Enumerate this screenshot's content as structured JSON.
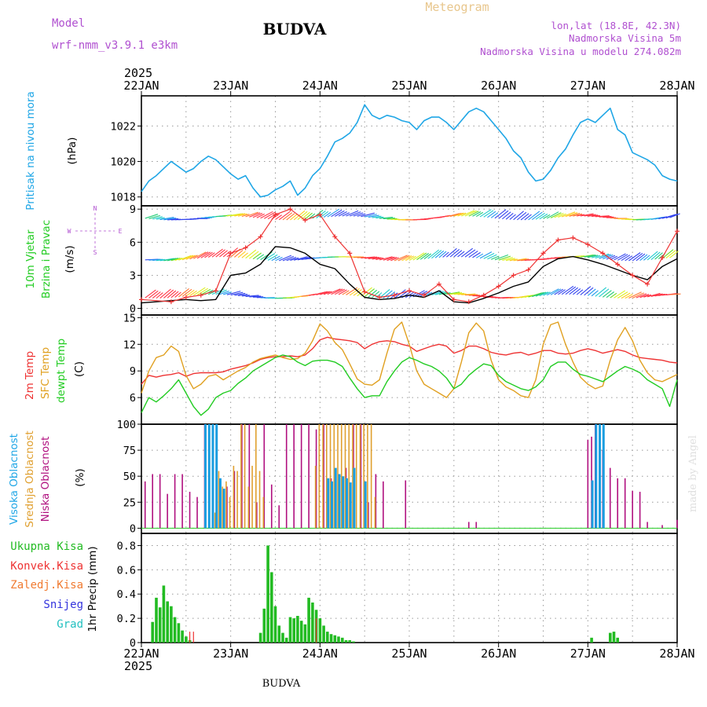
{
  "header": {
    "model_label": "Model",
    "model_name": "wrf-nmm_v3.9.1 e3km",
    "station": "BUDVA",
    "meteogram": "Meteogram",
    "lonlat": "lon,lat (18.8E, 42.3N)",
    "elevation": "Nadmorska Visina 5m",
    "model_elevation": "Nadmorska Visina u modelu 274.082m",
    "year": "2025",
    "footer_station": "BUDVA",
    "watermark": "made by Angel"
  },
  "colors": {
    "pressure": "#1fa6e6",
    "wind_speed": "#000000",
    "gust": "#ee3333",
    "temp2m": "#ee3333",
    "sfc_temp": "#e0a020",
    "dewpt": "#22cc22",
    "high_cloud": "#1a9de0",
    "mid_cloud": "#e0a030",
    "low_cloud": "#b0107f",
    "total_precip": "#22bb22",
    "conv_precip": "#ee3333",
    "frozen_precip": "#f07a30",
    "snow": "#3333dd",
    "hail": "#22c0c0",
    "purple_label": "#a040c0"
  },
  "chart_data": [
    {
      "type": "line",
      "id": "pressure",
      "ylabel": "Pritisak na nivou mora",
      "unit": "(hPa)",
      "ylim": [
        1017.5,
        1023.7
      ],
      "yticks": [
        1018,
        1020,
        1022
      ],
      "x": [
        0,
        2,
        4,
        6,
        8,
        10,
        12,
        14,
        16,
        18,
        20,
        22,
        24,
        26,
        28,
        30,
        32,
        34,
        36,
        38,
        40,
        42,
        44,
        46,
        48,
        50,
        52,
        54,
        56,
        58,
        60,
        62,
        64,
        66,
        68,
        70,
        72,
        74,
        76,
        78,
        80,
        82,
        84,
        86,
        88,
        90,
        92,
        94,
        96,
        98,
        100,
        102,
        104,
        106,
        108,
        110,
        112,
        114,
        116,
        118,
        120,
        122,
        124,
        126,
        128,
        130,
        132,
        134,
        136,
        138,
        140,
        142,
        144
      ],
      "values": [
        1018.3,
        1018.9,
        1019.2,
        1019.6,
        1020.0,
        1019.7,
        1019.4,
        1019.6,
        1020.0,
        1020.3,
        1020.1,
        1019.7,
        1019.3,
        1019.0,
        1019.2,
        1018.5,
        1018.0,
        1018.1,
        1018.4,
        1018.6,
        1018.9,
        1018.1,
        1018.5,
        1019.2,
        1019.6,
        1020.3,
        1021.1,
        1021.3,
        1021.6,
        1022.2,
        1023.2,
        1022.6,
        1022.4,
        1022.6,
        1022.5,
        1022.3,
        1022.2,
        1021.8,
        1022.3,
        1022.5,
        1022.5,
        1022.2,
        1021.8,
        1022.3,
        1022.8,
        1023.0,
        1022.8,
        1022.3,
        1021.8,
        1021.3,
        1020.6,
        1020.2,
        1019.4,
        1018.9,
        1019.0,
        1019.5,
        1020.2,
        1020.7,
        1021.5,
        1022.2,
        1022.4,
        1022.2,
        1022.6,
        1023.0,
        1021.8,
        1021.5,
        1020.5,
        1020.3,
        1020.1,
        1019.8,
        1019.2,
        1019.0,
        1018.9
      ]
    },
    {
      "type": "line",
      "id": "wind",
      "ylabel1": "10m Vjetar",
      "ylabel2": "Brzina i Pravac",
      "unit": "(m/s)",
      "compass": [
        "N",
        "W",
        "E",
        "S"
      ],
      "ylim": [
        -0.6,
        9.3
      ],
      "yticks": [
        0,
        3,
        6,
        9
      ],
      "series": [
        {
          "name": "speed",
          "x": [
            0,
            12,
            16,
            20,
            24,
            28,
            32,
            36,
            40,
            44,
            48,
            52,
            56,
            60,
            64,
            68,
            72,
            76,
            80,
            84,
            88,
            92,
            96,
            100,
            104,
            108,
            112,
            116,
            120,
            124,
            128,
            132,
            136,
            140,
            144
          ],
          "values": [
            0.5,
            0.8,
            0.7,
            0.8,
            3.0,
            3.2,
            4.0,
            5.6,
            5.5,
            5.0,
            4.0,
            3.6,
            2.2,
            1.0,
            0.8,
            0.9,
            1.2,
            1.0,
            1.6,
            0.6,
            0.5,
            0.9,
            1.4,
            2.0,
            2.4,
            3.8,
            4.5,
            4.7,
            4.4,
            4.0,
            3.5,
            3.0,
            2.6,
            3.8,
            4.5
          ]
        },
        {
          "name": "gust",
          "x": [
            0,
            8,
            12,
            16,
            20,
            24,
            28,
            32,
            36,
            40,
            44,
            48,
            52,
            56,
            60,
            64,
            68,
            72,
            76,
            80,
            84,
            88,
            92,
            96,
            100,
            104,
            108,
            112,
            116,
            120,
            124,
            128,
            132,
            136,
            140,
            144
          ],
          "values": [
            0.8,
            0.6,
            1.0,
            1.2,
            1.6,
            5.0,
            5.5,
            6.5,
            8.5,
            9.0,
            8.0,
            8.5,
            6.5,
            5.0,
            1.5,
            1.0,
            1.2,
            1.6,
            1.2,
            2.2,
            0.8,
            0.6,
            1.2,
            2.0,
            3.0,
            3.5,
            5.0,
            6.2,
            6.4,
            5.8,
            5.0,
            4.0,
            3.0,
            2.2,
            4.6,
            7.0
          ]
        }
      ]
    },
    {
      "type": "line",
      "id": "temperature",
      "ylabel1": "2m Temp",
      "ylabel2": "SFC Temp",
      "ylabel3": "dewpt Temp",
      "unit": "(C)",
      "ylim": [
        3,
        15.3
      ],
      "yticks": [
        6,
        9,
        12,
        15
      ],
      "x": [
        0,
        2,
        4,
        6,
        8,
        10,
        12,
        14,
        16,
        18,
        20,
        22,
        24,
        26,
        28,
        30,
        32,
        34,
        36,
        38,
        40,
        42,
        44,
        46,
        48,
        50,
        52,
        54,
        56,
        58,
        60,
        62,
        64,
        66,
        68,
        70,
        72,
        74,
        76,
        78,
        80,
        82,
        84,
        86,
        88,
        90,
        92,
        94,
        96,
        98,
        100,
        102,
        104,
        106,
        108,
        110,
        112,
        114,
        116,
        118,
        120,
        122,
        124,
        126,
        128,
        130,
        132,
        134,
        136,
        138,
        140,
        142,
        144
      ],
      "series": [
        {
          "name": "2m Temp",
          "values": [
            7.5,
            8.5,
            8.3,
            8.5,
            8.6,
            8.8,
            8.4,
            8.7,
            8.8,
            8.8,
            8.8,
            8.9,
            9.2,
            9.4,
            9.6,
            9.9,
            10.3,
            10.5,
            10.6,
            10.6,
            10.7,
            10.6,
            10.8,
            11.5,
            12.5,
            12.8,
            12.6,
            12.5,
            12.4,
            12.2,
            11.5,
            12.0,
            12.3,
            12.4,
            12.3,
            12.0,
            11.8,
            11.2,
            11.5,
            11.8,
            12.0,
            11.8,
            11.0,
            11.3,
            11.8,
            11.8,
            11.5,
            11.1,
            10.9,
            10.8,
            11.0,
            11.1,
            10.8,
            11.0,
            11.3,
            11.3,
            11.0,
            10.9,
            11.0,
            11.3,
            11.5,
            11.3,
            11.0,
            11.2,
            11.4,
            11.2,
            10.8,
            10.5,
            10.4,
            10.3,
            10.2,
            10.0,
            9.9
          ]
        },
        {
          "name": "SFC Temp",
          "values": [
            6.5,
            9.0,
            10.5,
            10.8,
            11.8,
            11.2,
            8.5,
            7.0,
            7.5,
            8.4,
            8.6,
            8.0,
            8.5,
            9.0,
            9.4,
            10.0,
            10.4,
            10.6,
            10.8,
            10.5,
            10.3,
            10.4,
            11.0,
            12.4,
            14.3,
            13.5,
            12.2,
            11.4,
            9.8,
            8.1,
            7.5,
            7.4,
            8.0,
            11.0,
            13.7,
            14.5,
            12.0,
            9.0,
            7.5,
            7.0,
            6.5,
            6.0,
            7.0,
            10.0,
            13.3,
            14.4,
            13.5,
            10.2,
            8.0,
            7.2,
            6.8,
            6.2,
            6.0,
            8.0,
            12.0,
            14.2,
            14.5,
            12.0,
            10.0,
            8.3,
            7.5,
            7.0,
            7.3,
            10.2,
            12.5,
            13.9,
            12.4,
            10.2,
            8.8,
            8.0,
            7.8,
            8.2,
            8.6
          ]
        },
        {
          "name": "dewpt Temp",
          "values": [
            4.3,
            6.0,
            5.5,
            6.2,
            7.0,
            8.0,
            6.5,
            5.0,
            4.0,
            4.7,
            6.0,
            6.5,
            6.8,
            7.6,
            8.2,
            9.0,
            9.5,
            10.0,
            10.5,
            10.8,
            10.6,
            10.0,
            9.6,
            10.1,
            10.2,
            10.2,
            10.0,
            9.5,
            8.2,
            7.0,
            6.0,
            6.2,
            6.2,
            7.8,
            9.0,
            10.0,
            10.5,
            10.2,
            9.8,
            9.5,
            9.0,
            8.2,
            7.0,
            7.5,
            8.5,
            9.2,
            9.8,
            9.6,
            8.5,
            7.8,
            7.4,
            7.0,
            6.8,
            7.2,
            8.0,
            9.5,
            10.0,
            10.0,
            9.2,
            8.6,
            8.4,
            8.1,
            7.8,
            8.4,
            9.0,
            9.5,
            9.2,
            8.8,
            8.0,
            7.5,
            7.0,
            5.0,
            8.0
          ]
        }
      ]
    },
    {
      "type": "bar",
      "id": "clouds",
      "ylabel1": "Visoka Oblacnost",
      "ylabel2": "Srednja Oblacnost",
      "ylabel3": "Niska Oblacnost",
      "unit": "(%)",
      "ylim": [
        -5,
        100
      ],
      "yticks": [
        0,
        25,
        50,
        75,
        100
      ],
      "series": [
        {
          "name": "high",
          "x": [
            17,
            18,
            19,
            20,
            21,
            22,
            50,
            51,
            52,
            53,
            54,
            55,
            56,
            57,
            60,
            121,
            122,
            123,
            124
          ],
          "values": [
            100,
            100,
            100,
            100,
            48,
            38,
            48,
            45,
            58,
            52,
            50,
            48,
            44,
            58,
            45,
            46,
            100,
            100,
            100
          ]
        },
        {
          "name": "mid",
          "x": [
            20,
            21,
            22,
            23,
            24,
            25,
            26,
            27,
            28,
            29,
            30,
            31,
            32,
            33,
            47,
            48,
            49,
            50,
            51,
            52,
            53,
            54,
            55,
            56,
            57,
            58,
            59,
            60,
            61,
            62,
            63
          ],
          "values": [
            15,
            55,
            40,
            45,
            30,
            60,
            55,
            100,
            100,
            40,
            60,
            100,
            55,
            30,
            60,
            100,
            100,
            100,
            100,
            100,
            100,
            100,
            100,
            100,
            100,
            100,
            100,
            100,
            100,
            100,
            30
          ]
        },
        {
          "name": "low",
          "x": [
            1,
            3,
            5,
            7,
            9,
            11,
            13,
            15,
            17,
            23,
            25,
            27,
            29,
            31,
            33,
            35,
            37,
            39,
            41,
            43,
            45,
            47,
            49,
            51,
            53,
            55,
            57,
            59,
            61,
            63,
            65,
            71,
            88,
            90,
            120,
            121,
            122,
            124,
            126,
            128,
            130,
            132,
            134,
            136,
            140,
            144
          ],
          "values": [
            45,
            52,
            52,
            33,
            52,
            52,
            35,
            30,
            100,
            40,
            55,
            100,
            100,
            25,
            100,
            42,
            22,
            100,
            100,
            100,
            100,
            95,
            100,
            48,
            48,
            58,
            100,
            100,
            25,
            52,
            45,
            46,
            6,
            6,
            85,
            88,
            100,
            75,
            58,
            48,
            48,
            36,
            35,
            6,
            3,
            8
          ]
        }
      ]
    },
    {
      "type": "bar",
      "id": "precip",
      "ylabel": "1hr Precip (mm)",
      "labels": [
        "Ukupna Kisa",
        "Konvek.Kisa",
        "Zaledj.Kisa",
        "Snijeg",
        "Grad"
      ],
      "ylim": [
        0,
        0.9
      ],
      "yticks": [
        0,
        0.2,
        0.4,
        0.6,
        0.8
      ],
      "series": [
        {
          "name": "total",
          "x": [
            3,
            4,
            5,
            6,
            7,
            8,
            9,
            10,
            11,
            12,
            13,
            32,
            33,
            34,
            35,
            36,
            37,
            38,
            39,
            40,
            41,
            42,
            43,
            44,
            45,
            46,
            47,
            48,
            49,
            50,
            51,
            52,
            53,
            54,
            55,
            56,
            57,
            121,
            126,
            127,
            128
          ],
          "values": [
            0.17,
            0.37,
            0.29,
            0.47,
            0.34,
            0.3,
            0.21,
            0.16,
            0.1,
            0.05,
            0.02,
            0.08,
            0.28,
            0.8,
            0.58,
            0.3,
            0.14,
            0.08,
            0.04,
            0.21,
            0.2,
            0.22,
            0.18,
            0.15,
            0.37,
            0.33,
            0.27,
            0.2,
            0.14,
            0.09,
            0.07,
            0.06,
            0.05,
            0.04,
            0.02,
            0.02,
            0.01,
            0.04,
            0.08,
            0.09,
            0.04
          ]
        },
        {
          "name": "convective",
          "x": [
            13,
            14,
            47
          ],
          "values": [
            0.09,
            0.09,
            0.2
          ]
        }
      ]
    }
  ],
  "x_axis": {
    "ticks": [
      "22JAN",
      "23JAN",
      "24JAN",
      "25JAN",
      "26JAN",
      "27JAN",
      "28JAN"
    ]
  }
}
